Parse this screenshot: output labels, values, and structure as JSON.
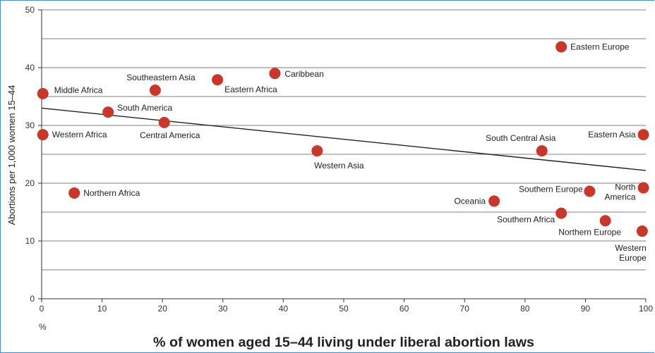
{
  "chart_data": {
    "type": "scatter",
    "title": "",
    "xlabel": "% of women aged 15–44 living under liberal abortion laws",
    "ylabel": "Abortions per 1,000 women 15–44",
    "x_unit_label": "%",
    "xlim": [
      0,
      100
    ],
    "ylim": [
      0,
      50
    ],
    "x_ticks": [
      "0",
      "10",
      "20",
      "30",
      "40",
      "50",
      "60",
      "70",
      "80",
      "90",
      "100"
    ],
    "y_ticks": [
      "0",
      "10",
      "20",
      "30",
      "40",
      "50"
    ],
    "grid": "horizontal",
    "point_color": "#c8382a",
    "trendline": {
      "x": [
        0,
        100
      ],
      "y": [
        33,
        22.2
      ]
    },
    "points": [
      {
        "label": "Middle Africa",
        "x": 0.2,
        "y": 35.5
      },
      {
        "label": "Western Africa",
        "x": 0.2,
        "y": 28.4
      },
      {
        "label": "Northern Africa",
        "x": 5.4,
        "y": 18.3
      },
      {
        "label": "South America",
        "x": 11,
        "y": 32.3
      },
      {
        "label": "Southeastern Asia",
        "x": 18.8,
        "y": 36.1
      },
      {
        "label": "Central America",
        "x": 20.3,
        "y": 30.5
      },
      {
        "label": "Eastern Africa",
        "x": 29.1,
        "y": 37.9
      },
      {
        "label": "Caribbean",
        "x": 38.6,
        "y": 39
      },
      {
        "label": "Western Asia",
        "x": 45.6,
        "y": 25.6
      },
      {
        "label": "Oceania",
        "x": 74.9,
        "y": 16.9
      },
      {
        "label": "South Central Asia",
        "x": 82.8,
        "y": 25.6
      },
      {
        "label": "Southern Africa",
        "x": 86,
        "y": 14.8
      },
      {
        "label": "Eastern Europe",
        "x": 86,
        "y": 43.6
      },
      {
        "label": "Southern Europe",
        "x": 90.7,
        "y": 18.6
      },
      {
        "label": "Northern Europe",
        "x": 93.3,
        "y": 13.5
      },
      {
        "label": "Western Europe",
        "x": 99.4,
        "y": 11.7
      },
      {
        "label": "North America",
        "x": 99.6,
        "y": 19.2
      },
      {
        "label": "Eastern Asia",
        "x": 99.6,
        "y": 28.4
      }
    ]
  }
}
